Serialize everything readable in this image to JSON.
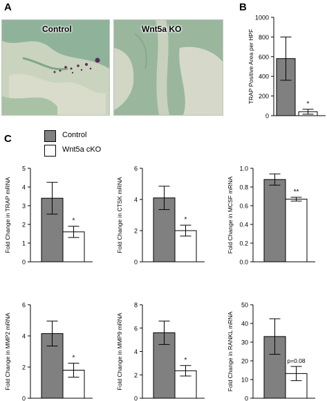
{
  "panel_labels": {
    "a": "A",
    "b": "B",
    "c": "C"
  },
  "micrographs": [
    {
      "title": "Control"
    },
    {
      "title": "Wnt5a KO"
    }
  ],
  "colors": {
    "control": "#808080",
    "cko": "#ffffff",
    "stain_bg": "#8fb29a",
    "bone": "#d2d6c4",
    "trap_stain": "#5a2a5a"
  },
  "legend": {
    "control": "Control",
    "cko": "Wnt5a cKO"
  },
  "chart_data": [
    {
      "id": "B",
      "type": "bar",
      "ylabel": "TRAP Positive Area per HPF",
      "ylim": [
        0,
        1000
      ],
      "yticks": [
        0,
        200,
        400,
        600,
        800,
        1000
      ],
      "series": [
        {
          "name": "Control",
          "values": [
            580
          ],
          "err": [
            220
          ]
        },
        {
          "name": "Wnt5a cKO",
          "values": [
            40
          ],
          "err": [
            25
          ]
        }
      ],
      "annotation": "*"
    },
    {
      "id": "TRAP",
      "type": "bar",
      "ylabel": "Fold Change in TRAP mRNA",
      "ylim": [
        0,
        5
      ],
      "yticks": [
        0,
        1,
        2,
        3,
        4,
        5
      ],
      "series": [
        {
          "name": "Control",
          "values": [
            3.4
          ],
          "err": [
            0.85
          ]
        },
        {
          "name": "Wnt5a cKO",
          "values": [
            1.6
          ],
          "err": [
            0.3
          ]
        }
      ],
      "annotation": "*"
    },
    {
      "id": "CTSK",
      "type": "bar",
      "ylabel": "Fold Change in CTSK mRNA",
      "ylim": [
        0,
        6
      ],
      "yticks": [
        0,
        2,
        4,
        6
      ],
      "series": [
        {
          "name": "Control",
          "values": [
            4.1
          ],
          "err": [
            0.75
          ]
        },
        {
          "name": "Wnt5a cKO",
          "values": [
            2.0
          ],
          "err": [
            0.35
          ]
        }
      ],
      "annotation": "*"
    },
    {
      "id": "MCSF",
      "type": "bar",
      "ylabel": "Fold Change in MCSF mRNA",
      "ylim": [
        0,
        1.0
      ],
      "yticks": [
        0.0,
        0.2,
        0.4,
        0.6,
        0.8,
        1.0
      ],
      "series": [
        {
          "name": "Control",
          "values": [
            0.88
          ],
          "err": [
            0.06
          ]
        },
        {
          "name": "Wnt5a cKO",
          "values": [
            0.67
          ],
          "err": [
            0.02
          ]
        }
      ],
      "annotation": "**"
    },
    {
      "id": "MMP2",
      "type": "bar",
      "ylabel": "Fold Change in MMP2 mRNA",
      "ylim": [
        0,
        6
      ],
      "yticks": [
        0,
        2,
        4,
        6
      ],
      "series": [
        {
          "name": "Control",
          "values": [
            4.15
          ],
          "err": [
            0.8
          ]
        },
        {
          "name": "Wnt5a cKO",
          "values": [
            1.8
          ],
          "err": [
            0.45
          ]
        }
      ],
      "annotation": "*"
    },
    {
      "id": "MMP9",
      "type": "bar",
      "ylabel": "Fold Change in MMP9 mRNA",
      "ylim": [
        0,
        8
      ],
      "yticks": [
        0,
        2,
        4,
        6,
        8
      ],
      "series": [
        {
          "name": "Control",
          "values": [
            5.6
          ],
          "err": [
            1.0
          ]
        },
        {
          "name": "Wnt5a cKO",
          "values": [
            2.35
          ],
          "err": [
            0.45
          ]
        }
      ],
      "annotation": "*"
    },
    {
      "id": "RANKL",
      "type": "bar",
      "ylabel": "Fold Change in RANKL mRNA",
      "ylim": [
        0,
        50
      ],
      "yticks": [
        0,
        10,
        20,
        30,
        40,
        50
      ],
      "series": [
        {
          "name": "Control",
          "values": [
            33
          ],
          "err": [
            9.5
          ]
        },
        {
          "name": "Wnt5a cKO",
          "values": [
            13.2
          ],
          "err": [
            3.8
          ]
        }
      ],
      "annotation": "p=0.08"
    }
  ]
}
